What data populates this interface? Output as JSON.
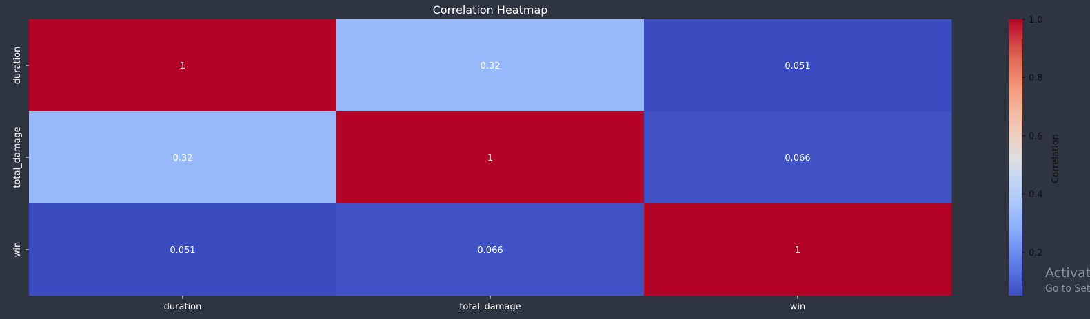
{
  "chart_data": {
    "type": "heatmap",
    "title": "Correlation Heatmap",
    "rows": [
      "duration",
      "total_damage",
      "win"
    ],
    "columns": [
      "duration",
      "total_damage",
      "win"
    ],
    "values": [
      [
        1,
        0.32,
        0.051
      ],
      [
        0.32,
        1,
        0.066
      ],
      [
        0.051,
        0.066,
        1
      ]
    ],
    "annotations": [
      [
        "1",
        "0.32",
        "0.051"
      ],
      [
        "0.32",
        "1",
        "0.066"
      ],
      [
        "0.051",
        "0.066",
        "1"
      ]
    ],
    "colormap": "coolwarm",
    "vmin": 0.051,
    "vmax": 1.0,
    "colorbar": {
      "label": "Correlation",
      "ticks": [
        0.2,
        0.4,
        0.6,
        0.8,
        1.0
      ],
      "tick_labels": [
        "0.2",
        "0.4",
        "0.6",
        "0.8",
        "1.0"
      ]
    }
  },
  "watermark": {
    "line1": "Activate",
    "line2": "Go to Sett"
  },
  "colors": {
    "background": "#2e3440",
    "text": "#ffffff"
  }
}
